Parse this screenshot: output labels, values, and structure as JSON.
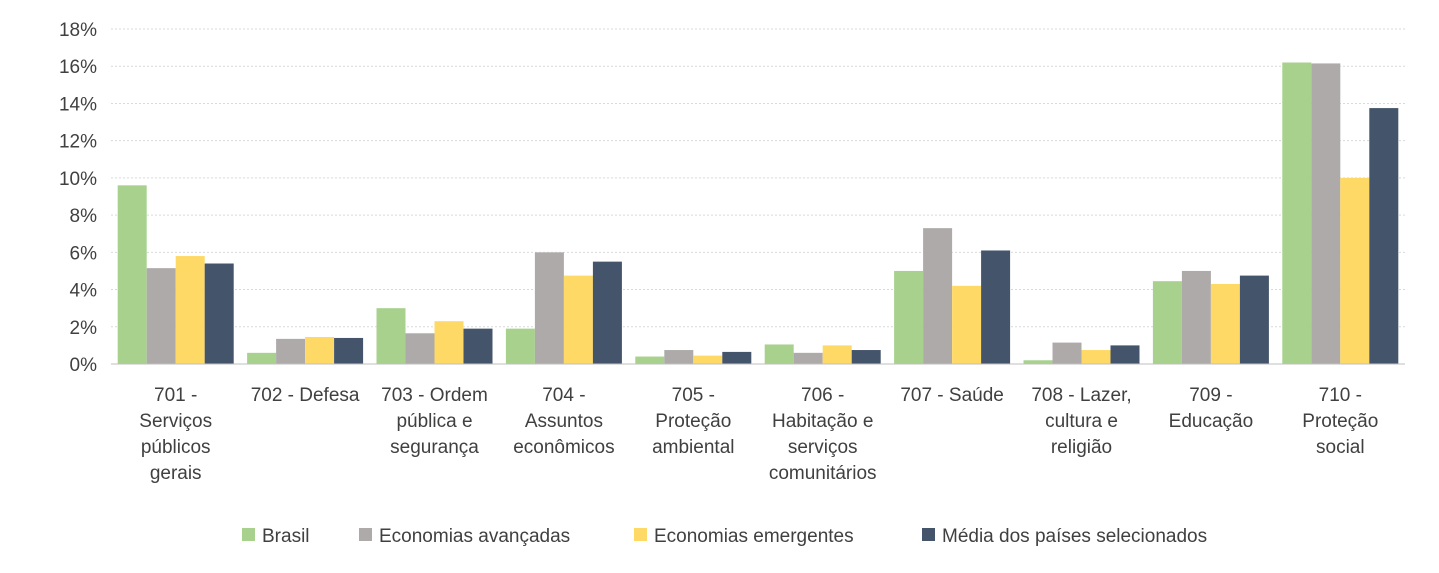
{
  "chart_data": {
    "type": "bar",
    "categories": [
      [
        "701 -",
        "Serviços",
        "públicos",
        "gerais"
      ],
      [
        "702 - Defesa"
      ],
      [
        "703 - Ordem",
        "pública e",
        "segurança"
      ],
      [
        "704 -",
        "Assuntos",
        "econômicos"
      ],
      [
        "705 -",
        "Proteção",
        "ambiental"
      ],
      [
        "706 -",
        "Habitação e",
        "serviços",
        "comunitários"
      ],
      [
        "707 - Saúde"
      ],
      [
        "708 - Lazer,",
        "cultura e",
        "religião"
      ],
      [
        "709 -",
        "Educação"
      ],
      [
        "710 -",
        "Proteção",
        "social"
      ]
    ],
    "series": [
      {
        "name": "Brasil",
        "color": "#a9d18e",
        "values": [
          9.6,
          0.6,
          3.0,
          1.9,
          0.4,
          1.05,
          5.0,
          0.2,
          4.45,
          16.2
        ]
      },
      {
        "name": "Economias avançadas",
        "color": "#aeaaaa",
        "values": [
          5.15,
          1.35,
          1.65,
          6.0,
          0.75,
          0.6,
          7.3,
          1.15,
          5.0,
          16.15
        ]
      },
      {
        "name": "Economias emergentes",
        "color": "#ffd966",
        "values": [
          5.8,
          1.45,
          2.3,
          4.75,
          0.45,
          1.0,
          4.2,
          0.75,
          4.3,
          10.0
        ]
      },
      {
        "name": "Média dos países selecionados",
        "color": "#44546a",
        "values": [
          5.4,
          1.4,
          1.9,
          5.5,
          0.65,
          0.75,
          6.1,
          1.0,
          4.75,
          13.75
        ]
      }
    ],
    "yticks": [
      "0%",
      "2%",
      "4%",
      "6%",
      "8%",
      "10%",
      "12%",
      "14%",
      "16%",
      "18%"
    ],
    "ylim": [
      0,
      18
    ],
    "grid": true,
    "legend": "bottom-center"
  }
}
